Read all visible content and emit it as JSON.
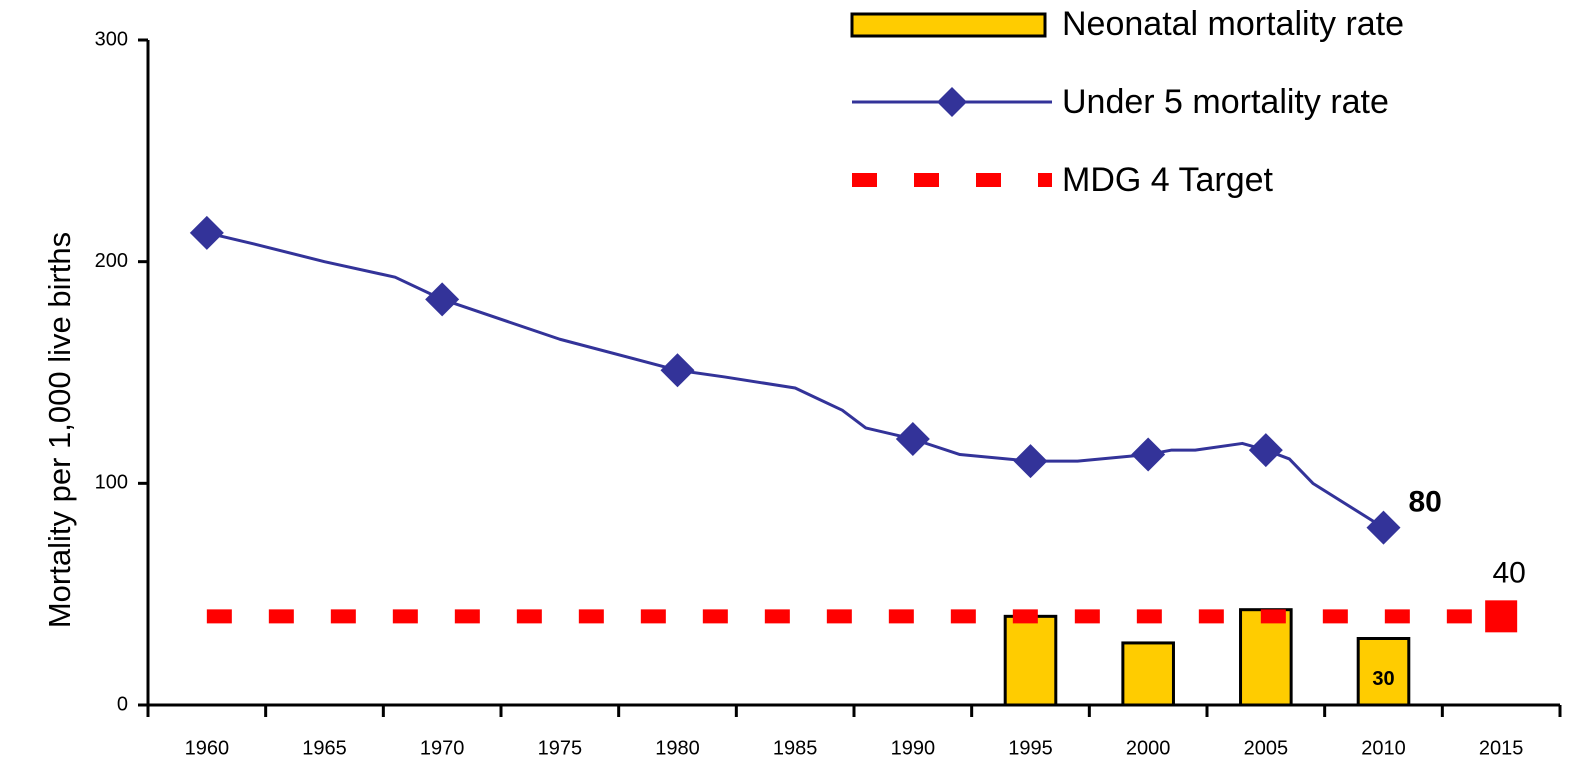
{
  "chart_data": {
    "type": "combo",
    "ylabel": "Mortality per 1,000 live births",
    "xlim": [
      1957.5,
      2017.5
    ],
    "xticks": [
      1960,
      1965,
      1970,
      1975,
      1980,
      1985,
      1990,
      1995,
      2000,
      2005,
      2010,
      2015
    ],
    "ylim": [
      0,
      300
    ],
    "yticks": [
      0,
      100,
      200,
      300
    ],
    "series": [
      {
        "name": "Neonatal mortality rate",
        "type": "bar",
        "color": "#ffcc00",
        "x": [
          1995,
          2000,
          2005,
          2010
        ],
        "values": [
          40,
          28,
          43,
          30
        ],
        "value_labels": [
          null,
          null,
          null,
          "30"
        ]
      },
      {
        "name": "Under 5 mortality rate",
        "type": "line",
        "color": "#333399",
        "x": [
          1960,
          1962,
          1965,
          1968,
          1970,
          1975,
          1980,
          1982,
          1985,
          1986,
          1987,
          1988,
          1990,
          1992,
          1995,
          1997,
          2000,
          2001,
          2002,
          2004,
          2005,
          2006,
          2007,
          2010
        ],
        "values": [
          213,
          208,
          200,
          193,
          183,
          165,
          151,
          148,
          143,
          138,
          133,
          125,
          120,
          113,
          110,
          110,
          113,
          115,
          115,
          118,
          115,
          111,
          100,
          80
        ],
        "markers": [
          true,
          false,
          false,
          false,
          true,
          false,
          true,
          false,
          false,
          false,
          false,
          false,
          true,
          false,
          true,
          false,
          true,
          false,
          false,
          false,
          true,
          false,
          false,
          true
        ],
        "value_labels": [
          null,
          null,
          null,
          null,
          null,
          null,
          null,
          null,
          null,
          null,
          null,
          null,
          null,
          null,
          null,
          null,
          null,
          null,
          null,
          null,
          null,
          null,
          null,
          "80"
        ]
      },
      {
        "name": "MDG 4 Target",
        "type": "dashed",
        "color": "#ff0000",
        "x": [
          1960,
          2015
        ],
        "values": [
          40,
          40
        ],
        "value_labels": [
          null,
          "40"
        ]
      }
    ]
  }
}
